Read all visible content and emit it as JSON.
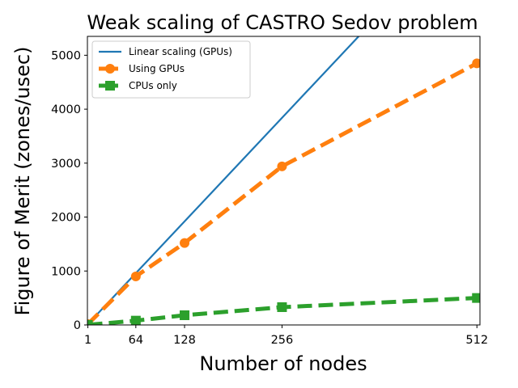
{
  "chart_data": {
    "type": "line",
    "title": "Weak scaling of CASTRO Sedov problem",
    "xlabel": "Number of nodes",
    "ylabel": "Figure of Merit (zones/usec)",
    "x_ticks": [
      1,
      64,
      128,
      256,
      512
    ],
    "y_ticks": [
      0,
      1000,
      2000,
      3000,
      4000,
      5000
    ],
    "xlim": [
      1,
      512
    ],
    "ylim": [
      0,
      5350
    ],
    "grid": false,
    "legend_position": "top-left",
    "series": [
      {
        "name": "Linear scaling (GPUs)",
        "style": "solid",
        "marker": "none",
        "color": "#1f77b4",
        "x": [
          1,
          512
        ],
        "y": [
          15,
          7680
        ]
      },
      {
        "name": "Using GPUs",
        "style": "dashed",
        "marker": "circle",
        "color": "#ff7f0e",
        "x": [
          1,
          64,
          128,
          256,
          512
        ],
        "y": [
          15,
          900,
          1520,
          2940,
          4850
        ]
      },
      {
        "name": "CPUs only",
        "style": "dashed",
        "marker": "square",
        "color": "#2ca02c",
        "x": [
          1,
          64,
          128,
          256,
          512
        ],
        "y": [
          2,
          80,
          180,
          330,
          500
        ]
      }
    ]
  }
}
